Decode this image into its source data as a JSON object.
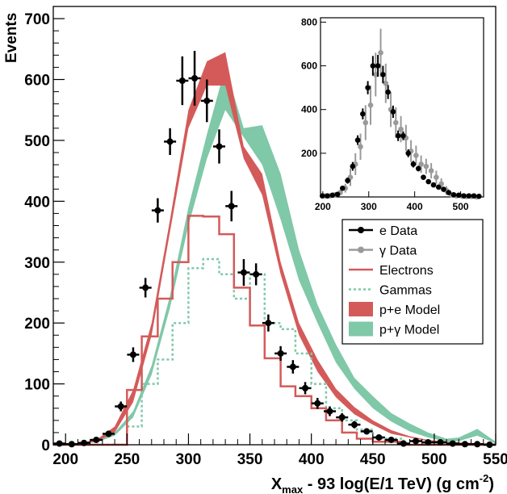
{
  "chart_data": {
    "type": "line",
    "ylabel": "Events",
    "xlabel_parts": {
      "x": "X",
      "sub": "max",
      "mid": " - 93 log(E/1 TeV) (g cm",
      "sup": "-2",
      "end": ")"
    },
    "xlim": [
      190,
      550
    ],
    "ylim": [
      0,
      720
    ],
    "x_ticks": [
      200,
      250,
      300,
      350,
      400,
      450,
      500,
      550
    ],
    "y_ticks": [
      0,
      100,
      200,
      300,
      400,
      500,
      600,
      700
    ],
    "colors": {
      "data": "#000000",
      "gamma_data": "#9a9a9a",
      "electrons": "#d45a5a",
      "gammas": "#7fc8a8",
      "pe_model": "#d45a5a",
      "pg_model": "#7fc8a8"
    },
    "legend": {
      "placement": "right-middle",
      "entries": [
        {
          "key": "e_data",
          "label": "e Data"
        },
        {
          "key": "g_data",
          "label": "γ Data"
        },
        {
          "key": "electrons",
          "label": "Electrons"
        },
        {
          "key": "gammas",
          "label": "Gammas"
        },
        {
          "key": "pe_model",
          "label": "p+e Model"
        },
        {
          "key": "pg_model",
          "label": "p+γ Model"
        }
      ]
    },
    "e_data": {
      "x": [
        195,
        205,
        215,
        225,
        235,
        245,
        255,
        265,
        275,
        285,
        295,
        305,
        315,
        325,
        335,
        345,
        355,
        365,
        375,
        385,
        395,
        405,
        415,
        425,
        435,
        445,
        455,
        465,
        475,
        485,
        495,
        505,
        515,
        525,
        535,
        545
      ],
      "y": [
        2,
        1,
        3,
        8,
        18,
        63,
        148,
        258,
        385,
        498,
        598,
        602,
        565,
        490,
        392,
        283,
        280,
        200,
        150,
        128,
        93,
        68,
        55,
        45,
        33,
        22,
        12,
        8,
        2,
        6,
        4,
        4,
        2,
        1,
        1,
        0
      ],
      "yerr": [
        2,
        1,
        2,
        3,
        5,
        8,
        12,
        16,
        20,
        22,
        40,
        45,
        35,
        28,
        25,
        22,
        18,
        14,
        12,
        11,
        10,
        9,
        8,
        7,
        6,
        5,
        4,
        3,
        2,
        3,
        2,
        2,
        2,
        1,
        1,
        1
      ]
    },
    "electrons_hist": {
      "edges": [
        190,
        250,
        262,
        275,
        287,
        300,
        312,
        325,
        337,
        350,
        362,
        375,
        387,
        400,
        412,
        425,
        437,
        450,
        475,
        550
      ],
      "values": [
        0,
        90,
        178,
        240,
        300,
        376,
        375,
        346,
        258,
        196,
        142,
        96,
        80,
        60,
        40,
        20,
        10,
        5,
        0
      ]
    },
    "gammas_hist": {
      "edges": [
        190,
        250,
        262,
        275,
        287,
        300,
        312,
        325,
        337,
        350,
        362,
        375,
        387,
        400,
        412,
        425,
        437,
        450,
        475,
        550
      ],
      "values": [
        0,
        30,
        100,
        140,
        200,
        290,
        305,
        280,
        240,
        280,
        200,
        190,
        150,
        100,
        60,
        40,
        25,
        10,
        0
      ]
    },
    "pe_model_band": {
      "x": [
        195,
        210,
        225,
        240,
        255,
        270,
        285,
        300,
        315,
        330,
        345,
        360,
        375,
        390,
        405,
        420,
        435,
        450,
        465,
        480,
        495,
        510,
        530,
        550
      ],
      "lower": [
        0,
        2,
        5,
        20,
        70,
        180,
        350,
        520,
        590,
        590,
        470,
        410,
        280,
        180,
        120,
        78,
        50,
        33,
        18,
        12,
        6,
        4,
        2,
        1
      ],
      "upper": [
        1,
        3,
        8,
        30,
        90,
        200,
        370,
        550,
        630,
        645,
        490,
        445,
        300,
        200,
        140,
        92,
        62,
        40,
        24,
        14,
        8,
        5,
        3,
        2
      ]
    },
    "pg_model_band": {
      "x": [
        195,
        210,
        225,
        240,
        255,
        270,
        285,
        300,
        315,
        330,
        345,
        360,
        375,
        390,
        405,
        420,
        435,
        450,
        465,
        480,
        495,
        510,
        520,
        535,
        550
      ],
      "lower": [
        0,
        2,
        4,
        15,
        45,
        115,
        225,
        360,
        470,
        550,
        505,
        460,
        370,
        270,
        200,
        135,
        92,
        60,
        38,
        22,
        12,
        5,
        6,
        15,
        2
      ],
      "upper": [
        1,
        3,
        6,
        20,
        55,
        130,
        245,
        390,
        510,
        620,
        520,
        525,
        445,
        320,
        230,
        165,
        110,
        80,
        52,
        35,
        20,
        10,
        12,
        26,
        5
      ]
    },
    "inset": {
      "xlim": [
        195,
        550
      ],
      "ylim": [
        0,
        820
      ],
      "x_ticks": [
        200,
        300,
        400,
        500
      ],
      "y_ticks": [
        200,
        400,
        600,
        800
      ],
      "e_data": {
        "x": [
          199,
          210,
          221,
          232,
          243,
          254,
          265,
          276,
          287,
          298,
          309,
          320,
          331,
          342,
          353,
          364,
          375,
          386,
          397,
          408,
          419,
          430,
          441,
          452,
          463,
          474,
          485,
          496,
          507,
          518,
          529,
          540
        ],
        "y": [
          5,
          5,
          8,
          12,
          40,
          75,
          140,
          260,
          380,
          500,
          600,
          600,
          560,
          480,
          390,
          280,
          280,
          200,
          150,
          130,
          90,
          70,
          55,
          45,
          35,
          20,
          10,
          8,
          5,
          5,
          5,
          3
        ],
        "yerr": [
          3,
          3,
          4,
          6,
          10,
          14,
          20,
          22,
          25,
          30,
          45,
          50,
          40,
          32,
          28,
          24,
          20,
          18,
          15,
          13,
          11,
          10,
          8,
          7,
          6,
          5,
          4,
          3,
          3,
          3,
          2,
          2
        ]
      },
      "g_data": {
        "x": [
          205,
          216,
          227,
          238,
          249,
          260,
          271,
          282,
          293,
          304,
          315,
          326,
          337,
          348,
          359,
          370,
          381,
          392,
          403,
          414,
          425,
          436,
          447,
          458,
          469,
          480,
          491,
          502,
          513,
          524,
          535
        ],
        "y": [
          5,
          5,
          10,
          20,
          40,
          90,
          150,
          230,
          340,
          420,
          560,
          660,
          520,
          400,
          340,
          310,
          270,
          210,
          190,
          150,
          140,
          120,
          90,
          60,
          30,
          10,
          5,
          5,
          2,
          2,
          0
        ],
        "yerr": [
          5,
          5,
          8,
          12,
          20,
          40,
          50,
          60,
          80,
          90,
          100,
          110,
          90,
          80,
          70,
          60,
          60,
          50,
          45,
          40,
          35,
          35,
          30,
          25,
          20,
          10,
          8,
          6,
          4,
          4,
          3
        ]
      }
    }
  }
}
